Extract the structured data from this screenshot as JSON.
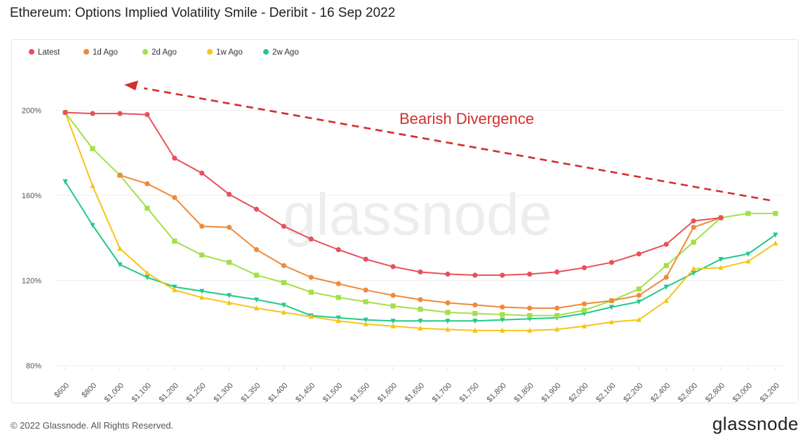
{
  "header": {
    "title": "Ethereum: Options Implied Volatility Smile - Deribit - 16 Sep 2022"
  },
  "footer": {
    "copyright": "© 2022 Glassnode. All Rights Reserved.",
    "logo": "glassnode"
  },
  "chart_data": {
    "type": "line",
    "title": "Ethereum: Options Implied Volatility Smile - Deribit - 16 Sep 2022",
    "xlabel": "",
    "ylabel": "",
    "categories": [
      "$600",
      "$800",
      "$1,000",
      "$1,100",
      "$1,200",
      "$1,250",
      "$1,300",
      "$1,350",
      "$1,400",
      "$1,450",
      "$1,500",
      "$1,550",
      "$1,600",
      "$1,650",
      "$1,700",
      "$1,750",
      "$1,800",
      "$1,850",
      "$1,900",
      "$2,000",
      "$2,100",
      "$2,200",
      "$2,400",
      "$2,600",
      "$2,800",
      "$3,000",
      "$3,200"
    ],
    "ylim": [
      80,
      214
    ],
    "yticks": [
      80,
      120,
      160,
      200
    ],
    "ytick_labels": [
      "80%",
      "120%",
      "160%",
      "200%"
    ],
    "grid": true,
    "legend": "top-left",
    "series": [
      {
        "name": "Latest",
        "color": "#e8505b",
        "marker": "circle",
        "values": [
          199,
          198.5,
          198.5,
          198,
          177.5,
          170.5,
          160.5,
          153.5,
          145.5,
          139.5,
          134.5,
          130,
          126.5,
          124,
          123,
          122.5,
          122.5,
          123,
          124,
          126,
          128.5,
          132.5,
          137,
          148,
          149.5,
          null,
          null
        ]
      },
      {
        "name": "1d Ago",
        "color": "#ef8a3a",
        "marker": "circle",
        "values": [
          null,
          null,
          169.5,
          165.5,
          159,
          145.5,
          145,
          134.5,
          127,
          121.5,
          118.5,
          115.5,
          113,
          111,
          109.5,
          108.5,
          107.5,
          107,
          107,
          109,
          110.5,
          113,
          121.5,
          145,
          149.5,
          null,
          null
        ]
      },
      {
        "name": "2d Ago",
        "color": "#a3e048",
        "marker": "square",
        "values": [
          199,
          182,
          169.5,
          154,
          138.5,
          132,
          128.5,
          122.5,
          119,
          114.5,
          112,
          110,
          108,
          106.5,
          105,
          104.5,
          104,
          103.5,
          103.5,
          106,
          110.5,
          116,
          127,
          138,
          149.5,
          151.5,
          151.5
        ]
      },
      {
        "name": "1w Ago",
        "color": "#f5c518",
        "marker": "triangle-up",
        "values": [
          199,
          164.5,
          135,
          123.5,
          115.5,
          112,
          109.5,
          107,
          105,
          103,
          101,
          99.5,
          98.5,
          97.5,
          97,
          96.5,
          96.5,
          96.5,
          97,
          98.5,
          100.5,
          101.5,
          110.5,
          125.5,
          126,
          129,
          137.5
        ]
      },
      {
        "name": "2w Ago",
        "color": "#22c98b",
        "marker": "triangle-down",
        "values": [
          166.5,
          146,
          127.5,
          121.5,
          117,
          115,
          113,
          111,
          108.5,
          103.5,
          102.5,
          101.5,
          101,
          101,
          101,
          101,
          101.5,
          102,
          102.5,
          104.5,
          107.5,
          110,
          117,
          123.5,
          130,
          132.5,
          141.5
        ]
      }
    ],
    "annotations": [
      {
        "text": "Bearish Divergence",
        "color": "#d32f2f"
      }
    ],
    "watermark": "glassnode"
  }
}
